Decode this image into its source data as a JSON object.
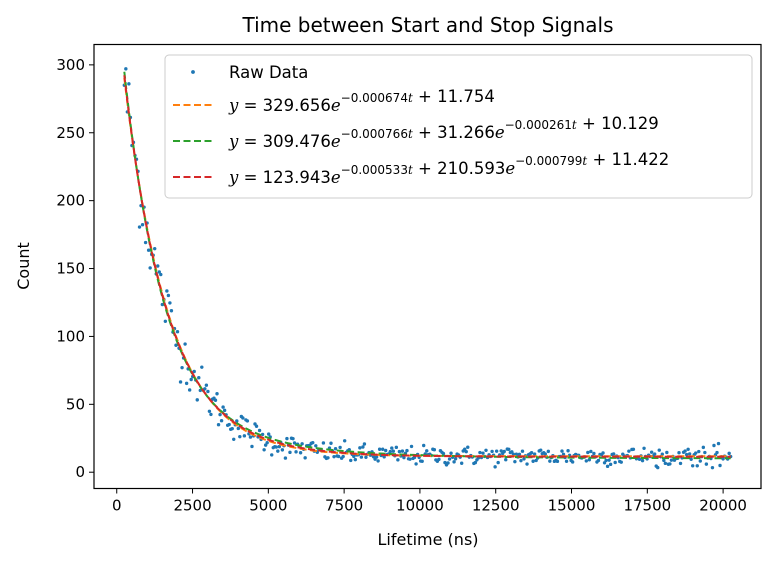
{
  "chart_data": {
    "type": "scatter",
    "title": "Time between Start and Stop Signals",
    "xlabel": "Lifetime (ns)",
    "ylabel": "Count",
    "xlim": [
      -750,
      21250
    ],
    "ylim": [
      -12,
      315
    ],
    "x_ticks": [
      0,
      2500,
      5000,
      7500,
      10000,
      12500,
      15000,
      17500,
      20000
    ],
    "x_tick_labels": [
      "0",
      "2500",
      "5000",
      "7500",
      "10000",
      "12500",
      "15000",
      "17500",
      "20000"
    ],
    "y_ticks": [
      0,
      50,
      100,
      150,
      200,
      250,
      300
    ],
    "y_tick_labels": [
      "0",
      "50",
      "100",
      "150",
      "200",
      "250",
      "300"
    ],
    "grid": false,
    "legend_position": "top-right",
    "raw_data": {
      "name": "Raw Data",
      "color": "#1f77b4",
      "x_start": 250,
      "x_end": 20250,
      "n_points": 400
    },
    "fits": [
      {
        "name": "y = 329.656e^{-0.000674t} + 11.754",
        "color": "#ff7f0e",
        "style": "dashed",
        "terms": [
          {
            "a": 329.656,
            "k": 0.000674
          }
        ],
        "c": 11.754,
        "legend": {
          "pre": "y",
          "parts": [
            [
              "= 329.656",
              "e",
              "−0.000674",
              "t",
              "+ 11.754"
            ]
          ]
        }
      },
      {
        "name": "y = 309.476e^{-0.000766t} + 31.266e^{-0.000261t} + 10.129",
        "color": "#2ca02c",
        "style": "dashed",
        "terms": [
          {
            "a": 309.476,
            "k": 0.000766
          },
          {
            "a": 31.266,
            "k": 0.000261
          }
        ],
        "c": 10.129
      },
      {
        "name": "y = 123.943e^{-0.000533t} + 210.593e^{-0.000799t} + 11.422",
        "color": "#d62728",
        "style": "dashed",
        "terms": [
          {
            "a": 123.943,
            "k": 0.000533
          },
          {
            "a": 210.593,
            "k": 0.000799
          }
        ],
        "c": 11.422
      }
    ],
    "legend_entries": [
      {
        "label_parts": [
          {
            "t": "Raw Data",
            "it": false
          }
        ]
      },
      {
        "label_parts": [
          {
            "t": "y",
            "it": true
          },
          {
            "t": " = 329.656",
            "it": false
          },
          {
            "t": "e",
            "it": true
          },
          {
            "sup": "−0.000674",
            "supt": "t"
          },
          {
            "t": " + 11.754",
            "it": false
          }
        ]
      },
      {
        "label_parts": [
          {
            "t": "y",
            "it": true
          },
          {
            "t": " = 309.476",
            "it": false
          },
          {
            "t": "e",
            "it": true
          },
          {
            "sup": "−0.000766",
            "supt": "t"
          },
          {
            "t": " + 31.266",
            "it": false
          },
          {
            "t": "e",
            "it": true
          },
          {
            "sup": "−0.000261",
            "supt": "t"
          },
          {
            "t": " + 10.129",
            "it": false
          }
        ]
      },
      {
        "label_parts": [
          {
            "t": "y",
            "it": true
          },
          {
            "t": " = 123.943",
            "it": false
          },
          {
            "t": "e",
            "it": true
          },
          {
            "sup": "−0.000533",
            "supt": "t"
          },
          {
            "t": " + 210.593",
            "it": false
          },
          {
            "t": "e",
            "it": true
          },
          {
            "sup": "−0.000799",
            "supt": "t"
          },
          {
            "t": " + 11.422",
            "it": false
          }
        ]
      }
    ]
  }
}
